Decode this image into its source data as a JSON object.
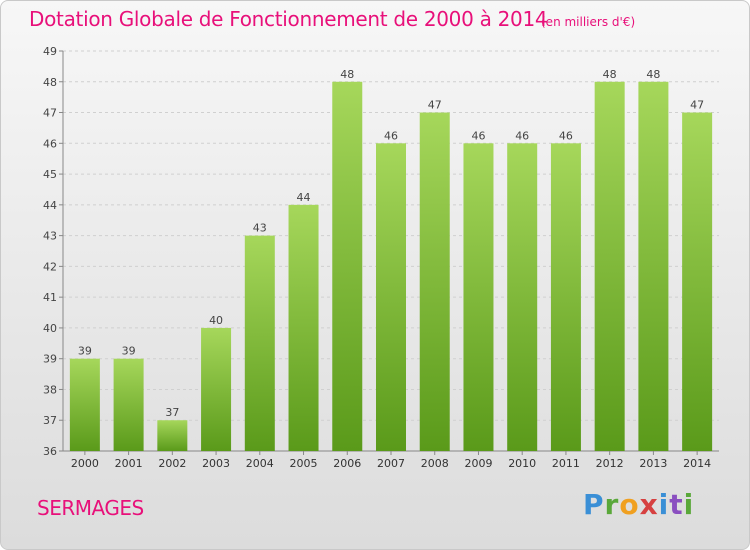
{
  "title": "Dotation Globale de Fonctionnement de 2000 à 2014",
  "subtitle": "(en milliers d'€)",
  "commune": "SERMAGES",
  "logo": {
    "letters": [
      "P",
      "r",
      "o",
      "x",
      "i",
      "t",
      "i"
    ]
  },
  "colors": {
    "title": "#e8107a",
    "bar_top": "#a6d75b",
    "bar_bottom": "#5a9a1a"
  },
  "chart_data": {
    "type": "bar",
    "categories": [
      "2000",
      "2001",
      "2002",
      "2003",
      "2004",
      "2005",
      "2006",
      "2007",
      "2008",
      "2009",
      "2010",
      "2011",
      "2012",
      "2013",
      "2014"
    ],
    "values": [
      39,
      39,
      37,
      40,
      43,
      44,
      48,
      46,
      47,
      46,
      46,
      46,
      48,
      48,
      47
    ],
    "title": "Dotation Globale de Fonctionnement de 2000 à 2014",
    "subtitle": "(en milliers d'€)",
    "xlabel": "",
    "ylabel": "",
    "ylim": [
      36,
      49
    ],
    "yticks": [
      36,
      37,
      38,
      39,
      40,
      41,
      42,
      43,
      44,
      45,
      46,
      47,
      48,
      49
    ],
    "grid": true,
    "legend": "none"
  }
}
